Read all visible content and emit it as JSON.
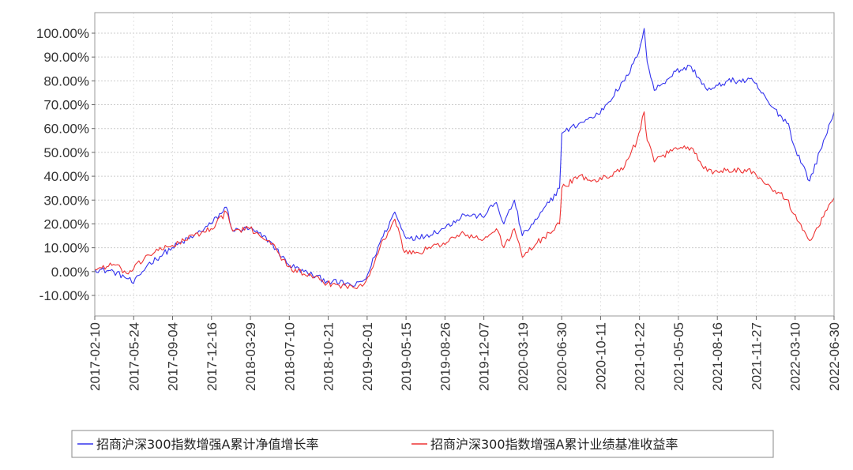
{
  "chart_data": {
    "type": "line",
    "title": "",
    "xlabel": "",
    "ylabel": "",
    "ylim": [
      -10,
      100
    ],
    "y_ticks": [
      "100.00%",
      "90.00%",
      "80.00%",
      "70.00%",
      "60.00%",
      "50.00%",
      "40.00%",
      "30.00%",
      "20.00%",
      "10.00%",
      "0.00%",
      "-10.00%"
    ],
    "x_ticks": [
      "2017-02-10",
      "2017-05-24",
      "2017-09-04",
      "2017-12-16",
      "2018-03-29",
      "2018-07-10",
      "2018-10-21",
      "2019-02-01",
      "2019-05-15",
      "2019-08-26",
      "2019-12-07",
      "2020-03-19",
      "2020-06-30",
      "2020-10-11",
      "2021-01-22",
      "2021-05-05",
      "2021-08-16",
      "2021-11-27",
      "2022-03-10",
      "2022-06-30"
    ],
    "grid": true,
    "legend_position": "bottom",
    "series": [
      {
        "name": "招商沪深300指数增强A累计净值增长率",
        "color": "#3333ee",
        "x": [
          "2017-02-10",
          "2017-04-01",
          "2017-05-10",
          "2017-05-24",
          "2017-07-01",
          "2017-09-04",
          "2017-11-01",
          "2017-12-16",
          "2018-01-26",
          "2018-02-12",
          "2018-03-29",
          "2018-05-20",
          "2018-07-10",
          "2018-08-20",
          "2018-10-21",
          "2018-12-10",
          "2019-01-03",
          "2019-02-01",
          "2019-03-10",
          "2019-04-19",
          "2019-05-15",
          "2019-06-20",
          "2019-08-26",
          "2019-10-20",
          "2019-12-07",
          "2020-01-14",
          "2020-02-03",
          "2020-03-02",
          "2020-03-23",
          "2020-05-01",
          "2020-06-30",
          "2020-07-06",
          "2020-08-20",
          "2020-10-11",
          "2020-12-20",
          "2021-01-22",
          "2021-02-10",
          "2021-02-18",
          "2021-03-09",
          "2021-05-05",
          "2021-06-15",
          "2021-07-28",
          "2021-08-16",
          "2021-09-20",
          "2021-11-27",
          "2022-01-10",
          "2022-03-01",
          "2022-03-10",
          "2022-04-26",
          "2022-06-30"
        ],
        "values": [
          1,
          0,
          -3,
          -5,
          3,
          10,
          15,
          20,
          27,
          17,
          18,
          13,
          3,
          0,
          -4,
          -5,
          -6,
          -3,
          12,
          25,
          15,
          14,
          18,
          24,
          23,
          29,
          20,
          30,
          15,
          22,
          35,
          58,
          62,
          66,
          80,
          90,
          102,
          88,
          76,
          84,
          86,
          76,
          77,
          80,
          80,
          70,
          62,
          55,
          38,
          67
        ]
      },
      {
        "name": "招商沪深300指数增强A累计业绩基准收益率",
        "color": "#ee3333",
        "x": [
          "2017-02-10",
          "2017-04-01",
          "2017-05-10",
          "2017-05-24",
          "2017-07-01",
          "2017-09-04",
          "2017-11-01",
          "2017-12-16",
          "2018-01-26",
          "2018-02-12",
          "2018-03-29",
          "2018-05-20",
          "2018-07-10",
          "2018-08-20",
          "2018-10-21",
          "2018-12-10",
          "2019-01-03",
          "2019-02-01",
          "2019-03-10",
          "2019-04-19",
          "2019-05-15",
          "2019-06-20",
          "2019-08-26",
          "2019-10-20",
          "2019-12-07",
          "2020-01-14",
          "2020-02-03",
          "2020-03-02",
          "2020-03-23",
          "2020-05-01",
          "2020-06-30",
          "2020-07-06",
          "2020-08-20",
          "2020-10-11",
          "2020-12-20",
          "2021-01-22",
          "2021-02-10",
          "2021-02-18",
          "2021-03-09",
          "2021-05-05",
          "2021-06-15",
          "2021-07-28",
          "2021-08-16",
          "2021-09-20",
          "2021-11-27",
          "2022-01-10",
          "2022-03-01",
          "2022-03-10",
          "2022-04-26",
          "2022-06-30"
        ],
        "values": [
          1,
          3,
          -1,
          1,
          7,
          11,
          15,
          18,
          25,
          17,
          18,
          13,
          2,
          -1,
          -5,
          -6,
          -7,
          -4,
          10,
          22,
          8,
          8,
          12,
          16,
          13,
          18,
          10,
          18,
          6,
          12,
          20,
          35,
          40,
          38,
          44,
          55,
          67,
          55,
          46,
          52,
          52,
          42,
          42,
          43,
          42,
          36,
          30,
          25,
          13,
          31
        ]
      }
    ]
  }
}
